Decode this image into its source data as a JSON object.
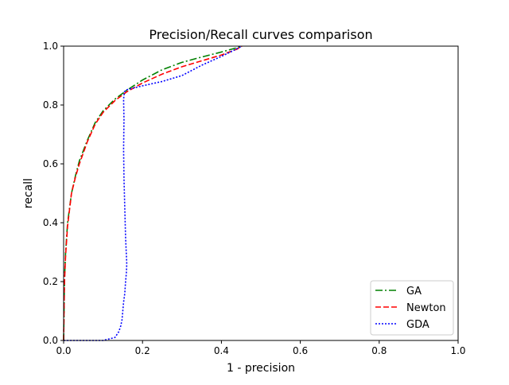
{
  "chart_data": {
    "type": "line",
    "title": "Precision/Recall curves comparison",
    "xlabel": "1 - precision",
    "ylabel": "recall",
    "xlim": [
      0.0,
      1.0
    ],
    "ylim": [
      0.0,
      1.0
    ],
    "xticks": [
      "0.0",
      "0.2",
      "0.4",
      "0.6",
      "0.8",
      "1.0"
    ],
    "yticks": [
      "0.0",
      "0.2",
      "0.4",
      "0.6",
      "0.8",
      "1.0"
    ],
    "grid": false,
    "legend_position": "lower-right",
    "series": [
      {
        "name": "GA",
        "color": "#008000",
        "linestyle": "dashdot",
        "x": [
          0.0,
          0.002,
          0.005,
          0.01,
          0.02,
          0.03,
          0.04,
          0.06,
          0.08,
          0.1,
          0.13,
          0.16,
          0.2,
          0.25,
          0.3,
          0.35,
          0.4,
          0.44,
          0.452
        ],
        "y": [
          0.0,
          0.2,
          0.3,
          0.4,
          0.5,
          0.56,
          0.61,
          0.68,
          0.74,
          0.78,
          0.82,
          0.85,
          0.885,
          0.92,
          0.945,
          0.963,
          0.98,
          0.995,
          1.0
        ]
      },
      {
        "name": "Newton",
        "color": "#ff0000",
        "linestyle": "dashed",
        "x": [
          0.0,
          0.002,
          0.005,
          0.01,
          0.02,
          0.03,
          0.04,
          0.06,
          0.08,
          0.1,
          0.13,
          0.16,
          0.2,
          0.25,
          0.3,
          0.35,
          0.4,
          0.44,
          0.452
        ],
        "y": [
          0.0,
          0.19,
          0.29,
          0.39,
          0.5,
          0.555,
          0.6,
          0.675,
          0.735,
          0.775,
          0.815,
          0.845,
          0.875,
          0.905,
          0.93,
          0.95,
          0.97,
          0.99,
          1.0
        ]
      },
      {
        "name": "GDA",
        "color": "#0000ff",
        "linestyle": "dotted",
        "x": [
          0.0,
          0.1,
          0.13,
          0.135,
          0.14,
          0.145,
          0.148,
          0.15,
          0.152,
          0.155,
          0.157,
          0.159,
          0.16,
          0.157,
          0.155,
          0.153,
          0.152,
          0.153,
          0.152,
          0.154,
          0.16,
          0.2,
          0.25,
          0.3,
          0.35,
          0.4,
          0.43,
          0.452
        ],
        "y": [
          0.0,
          0.0,
          0.01,
          0.02,
          0.03,
          0.05,
          0.07,
          0.1,
          0.13,
          0.16,
          0.2,
          0.23,
          0.26,
          0.35,
          0.45,
          0.55,
          0.65,
          0.75,
          0.82,
          0.845,
          0.852,
          0.865,
          0.88,
          0.9,
          0.935,
          0.965,
          0.985,
          1.0
        ]
      }
    ]
  }
}
